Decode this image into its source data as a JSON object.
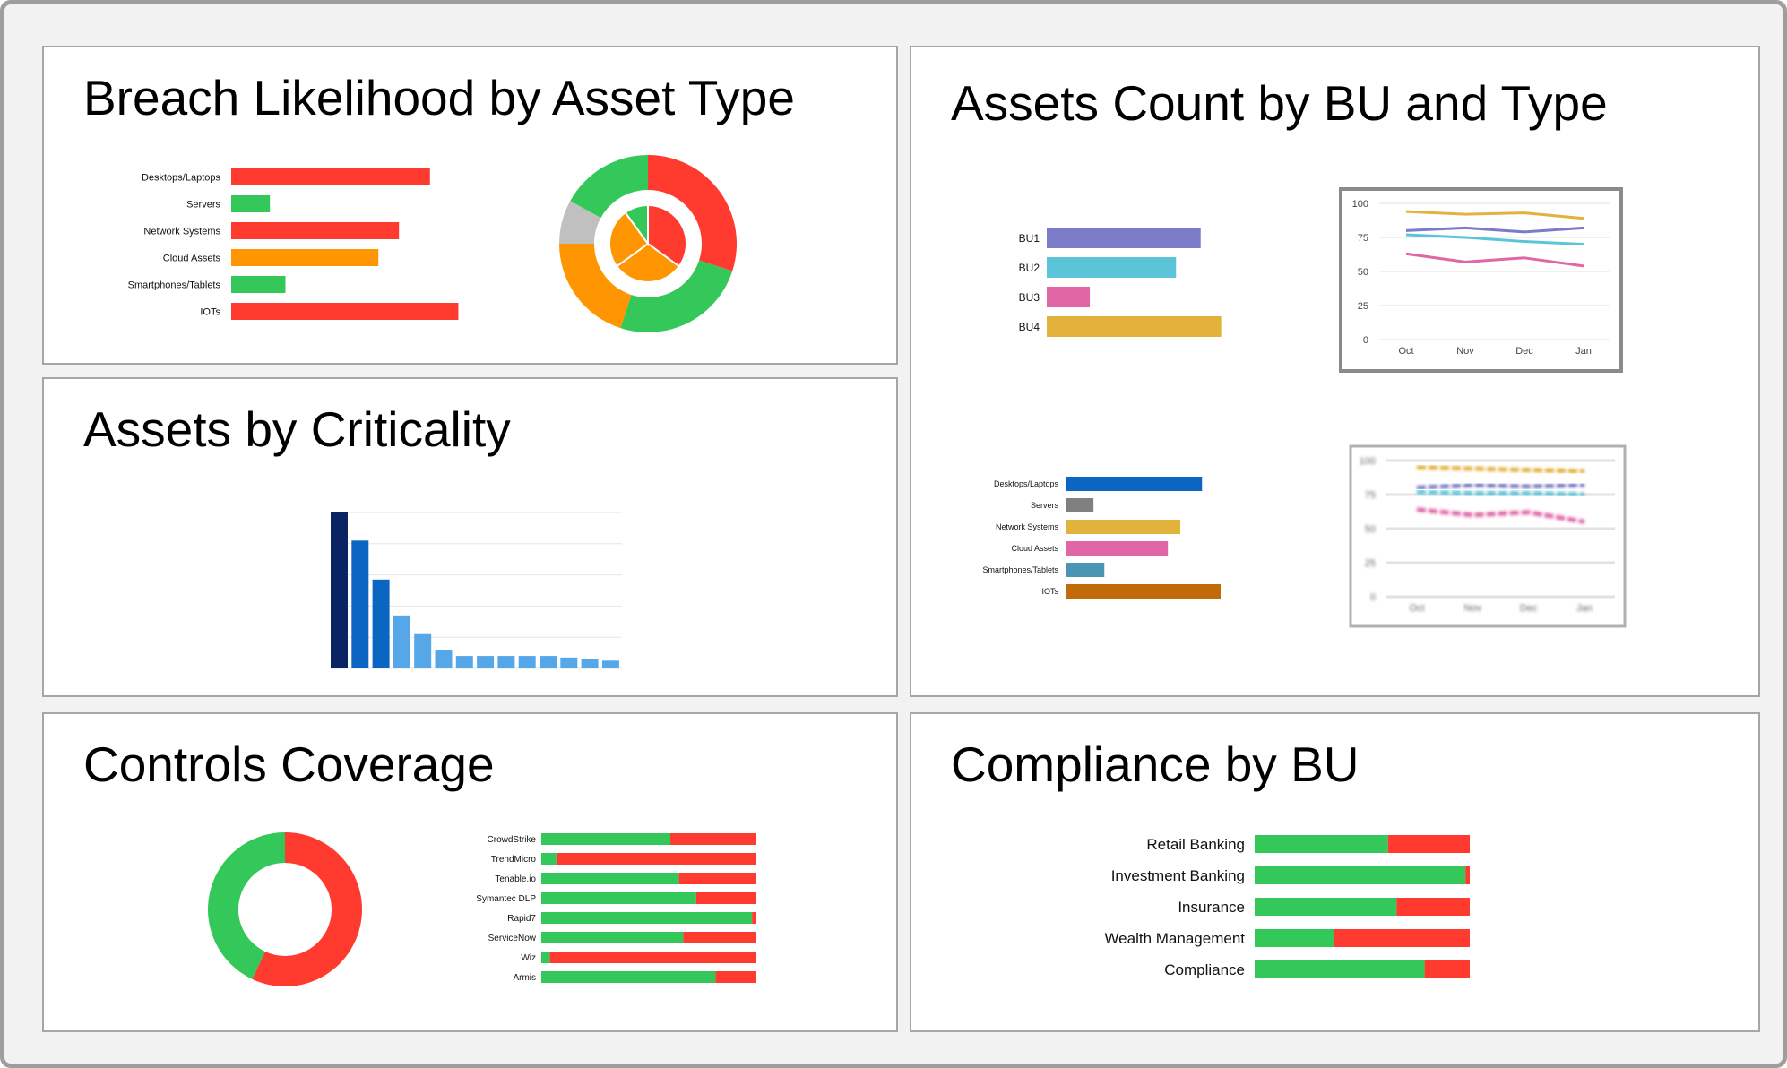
{
  "colors": {
    "red": "#ff3b30",
    "green": "#34c759",
    "orange": "#ff9500",
    "gray": "#c0c0c0"
  },
  "panels": {
    "breach": {
      "title": "Breach Likelihood by Asset Type"
    },
    "assets": {
      "title": "Assets Count by BU and Type"
    },
    "criticality": {
      "title": "Assets by Criticality"
    },
    "controls": {
      "title": "Controls Coverage"
    },
    "compliance": {
      "title": "Compliance by BU"
    }
  },
  "chart_data": [
    {
      "id": "breach-bar",
      "type": "bar",
      "orientation": "horizontal",
      "categories": [
        "Desktops/Laptops",
        "Servers",
        "Network Systems",
        "Cloud Assets",
        "Smartphones/Tablets",
        "IOTs"
      ],
      "values": [
        77,
        15,
        65,
        57,
        21,
        88
      ],
      "colors": [
        "#ff3b30",
        "#34c759",
        "#ff3b30",
        "#ff9500",
        "#34c759",
        "#ff3b30"
      ],
      "xlim": [
        0,
        100
      ]
    },
    {
      "id": "breach-donut",
      "type": "pie",
      "rings": [
        {
          "name": "outer",
          "values": [
            30,
            25,
            20,
            8,
            17
          ],
          "colors": [
            "#ff3b30",
            "#34c759",
            "#ff9500",
            "#c0c0c0",
            "#34c759"
          ]
        },
        {
          "name": "inner",
          "values": [
            35,
            30,
            25,
            10
          ],
          "colors": [
            "#ff3b30",
            "#ff9500",
            "#ff9500",
            "#34c759"
          ]
        }
      ]
    },
    {
      "id": "bu-bar",
      "type": "bar",
      "orientation": "horizontal",
      "categories": [
        "BU1",
        "BU2",
        "BU3",
        "BU4"
      ],
      "values": [
        75,
        63,
        21,
        85
      ],
      "colors": [
        "#7b7bc8",
        "#5bc4d9",
        "#e066a6",
        "#e3b23c"
      ],
      "xlim": [
        0,
        100
      ]
    },
    {
      "id": "bu-line",
      "type": "line",
      "x": [
        "Oct",
        "Nov",
        "Dec",
        "Jan"
      ],
      "yticks": [
        100,
        75,
        50,
        25,
        0
      ],
      "ylim": [
        0,
        100
      ],
      "series": [
        {
          "values": [
            94,
            92,
            93,
            89
          ],
          "color": "#e3b23c"
        },
        {
          "values": [
            80,
            82,
            79,
            82
          ],
          "color": "#7b7bc8"
        },
        {
          "values": [
            77,
            75,
            72,
            70
          ],
          "color": "#5bc4d9"
        },
        {
          "values": [
            63,
            57,
            60,
            54
          ],
          "color": "#e066a6"
        }
      ]
    },
    {
      "id": "type-bar",
      "type": "bar",
      "orientation": "horizontal",
      "categories": [
        "Desktops/Laptops",
        "Servers",
        "Network Systems",
        "Cloud Assets",
        "Smartphones/Tablets",
        "IOTs"
      ],
      "values": [
        88,
        18,
        74,
        66,
        25,
        100
      ],
      "colors": [
        "#0a66c2",
        "#808080",
        "#e3b23c",
        "#e066a6",
        "#4a95b3",
        "#c06a0a"
      ],
      "xlim": [
        0,
        100
      ]
    },
    {
      "id": "type-line",
      "type": "line",
      "x": [
        "Oct",
        "Nov",
        "Dec",
        "Jan"
      ],
      "yticks": [
        100,
        75,
        50,
        25,
        0
      ],
      "ylim": [
        0,
        100
      ],
      "series": [
        {
          "values": [
            95,
            94,
            93,
            92
          ],
          "color": "#e3b23c"
        },
        {
          "values": [
            80,
            82,
            81,
            82
          ],
          "color": "#7b7bc8"
        },
        {
          "values": [
            77,
            76,
            76,
            75
          ],
          "color": "#5bc4d9"
        },
        {
          "values": [
            64,
            60,
            62,
            55
          ],
          "color": "#e066a6"
        }
      ]
    },
    {
      "id": "crit-bar",
      "type": "bar",
      "values": [
        100,
        82,
        57,
        34,
        22,
        12,
        8,
        8,
        8,
        8,
        8,
        7,
        6,
        5
      ],
      "colors": [
        "#0a2463",
        "#0a66c2",
        "#0a66c2",
        "#56a7e8",
        "#56a7e8",
        "#56a7e8",
        "#56a7e8",
        "#56a7e8",
        "#56a7e8",
        "#56a7e8",
        "#56a7e8",
        "#56a7e8",
        "#56a7e8",
        "#56a7e8"
      ],
      "ylim": [
        0,
        100
      ],
      "grid": true
    },
    {
      "id": "controls-donut",
      "type": "pie",
      "values": [
        57,
        43
      ],
      "colors": [
        "#ff3b30",
        "#34c759"
      ]
    },
    {
      "id": "controls-bar",
      "type": "bar",
      "orientation": "horizontal",
      "stacked": true,
      "categories": [
        "CrowdStrike",
        "TrendMicro",
        "Tenable.io",
        "Symantec DLP",
        "Rapid7",
        "ServiceNow",
        "Wiz",
        "Armis"
      ],
      "series": [
        {
          "values": [
            60,
            7,
            64,
            72,
            98,
            66,
            4,
            81
          ],
          "color": "#34c759"
        },
        {
          "values": [
            40,
            93,
            36,
            28,
            2,
            34,
            96,
            19
          ],
          "color": "#ff3b30"
        }
      ],
      "xlim": [
        0,
        100
      ]
    },
    {
      "id": "compliance-bar",
      "type": "bar",
      "orientation": "horizontal",
      "stacked": true,
      "categories": [
        "Retail Banking",
        "Investment Banking",
        "Insurance",
        "Wealth Management",
        "Compliance"
      ],
      "series": [
        {
          "values": [
            62,
            98,
            66,
            37,
            79
          ],
          "color": "#34c759"
        },
        {
          "values": [
            38,
            2,
            34,
            63,
            21
          ],
          "color": "#ff3b30"
        }
      ],
      "xlim": [
        0,
        100
      ]
    }
  ]
}
